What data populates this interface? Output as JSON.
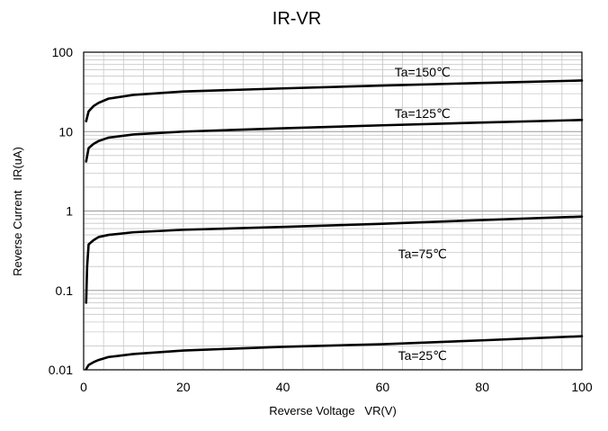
{
  "chart_data": {
    "type": "line",
    "title": "IR-VR",
    "xlabel": "Reverse Voltage   VR(V)",
    "ylabel": "Reverse Current   IR(uA)",
    "x_scale": "linear",
    "y_scale": "log",
    "xlim": [
      0,
      100
    ],
    "ylim": [
      0.01,
      100
    ],
    "x_ticks": [
      0,
      20,
      40,
      60,
      80,
      100
    ],
    "x_tick_labels": [
      "0",
      "20",
      "40",
      "60",
      "80",
      "100"
    ],
    "y_ticks": [
      0.01,
      0.1,
      1,
      10,
      100
    ],
    "y_tick_labels": [
      "0.01",
      "0.1",
      "1",
      "10",
      "100"
    ],
    "grid": true,
    "legend": "none",
    "line_color": "#000000",
    "grid_color": "#c8c8c8",
    "series": [
      {
        "label": "Ta=150℃",
        "x": [
          0.5,
          1,
          2,
          3,
          5,
          10,
          20,
          40,
          60,
          80,
          100
        ],
        "y": [
          13.5,
          18,
          21,
          23,
          26,
          29,
          32,
          35,
          38,
          41,
          44
        ]
      },
      {
        "label": "Ta=125℃",
        "x": [
          0.5,
          1,
          2,
          3,
          5,
          10,
          20,
          40,
          60,
          80,
          100
        ],
        "y": [
          4.2,
          6.2,
          7.0,
          7.6,
          8.4,
          9.2,
          10,
          11,
          12,
          13,
          14
        ]
      },
      {
        "label": "Ta=75℃",
        "x": [
          0.5,
          0.7,
          1,
          2,
          3,
          5,
          10,
          20,
          40,
          60,
          80,
          100
        ],
        "y": [
          0.07,
          0.2,
          0.38,
          0.43,
          0.47,
          0.5,
          0.54,
          0.58,
          0.63,
          0.69,
          0.77,
          0.85
        ]
      },
      {
        "label": "Ta=25℃",
        "x": [
          0.5,
          1,
          2,
          3,
          5,
          10,
          20,
          40,
          60,
          80,
          100
        ],
        "y": [
          0.0102,
          0.0115,
          0.0125,
          0.0133,
          0.0145,
          0.0158,
          0.0175,
          0.0195,
          0.021,
          0.0235,
          0.0265
        ]
      }
    ]
  }
}
